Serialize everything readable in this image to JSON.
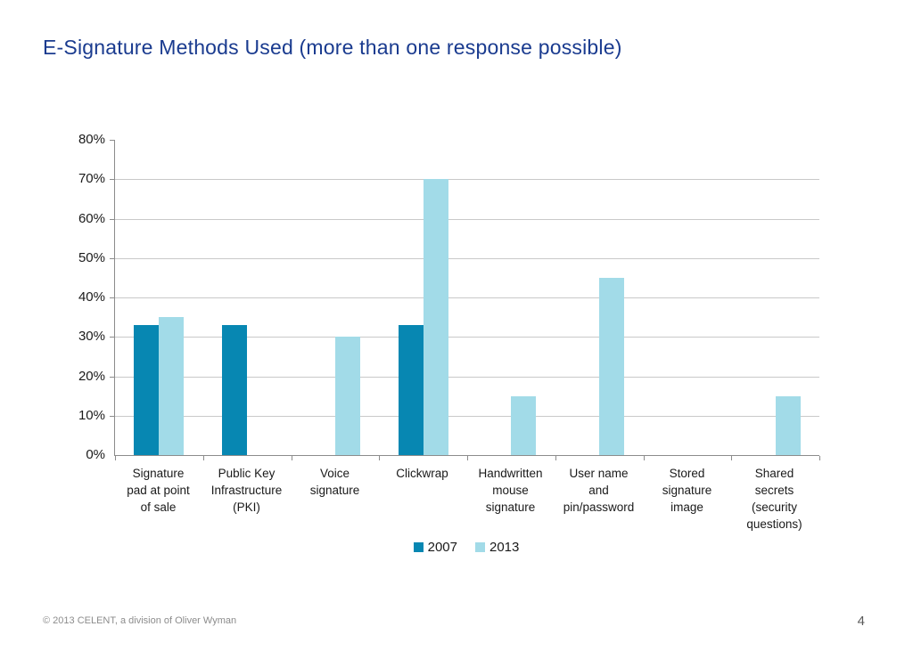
{
  "page": {
    "title": "E-Signature Methods Used (more than one response possible)",
    "footer": "© 2013 CELENT, a division of Oliver Wyman",
    "page_number": "4"
  },
  "colors": {
    "title": "#1a3b8f",
    "series_2007": "#0787b2",
    "series_2013": "#a2dbe8",
    "gridline": "#c9c9c9",
    "axis": "#8c8c8c",
    "footer_text": "#8c8c8c"
  },
  "chart_data": {
    "type": "bar",
    "title": "E-Signature Methods Used (more than one response possible)",
    "xlabel": "",
    "ylabel": "",
    "ylim": [
      0,
      80
    ],
    "y_tick_step": 10,
    "y_ticks": [
      "80%",
      "70%",
      "60%",
      "50%",
      "40%",
      "30%",
      "20%",
      "10%",
      "0%"
    ],
    "grid": true,
    "legend_position": "bottom",
    "categories": [
      "Signature pad at point of sale",
      "Public Key Infrastructure (PKI)",
      "Voice signature",
      "Clickwrap",
      "Handwritten mouse signature",
      "User name and pin/password",
      "Stored signature image",
      "Shared secrets (security questions)"
    ],
    "category_lines": [
      [
        "Signature",
        "pad at point",
        "of sale"
      ],
      [
        "Public Key",
        "Infrastructure",
        "(PKI)"
      ],
      [
        "Voice",
        "signature"
      ],
      [
        "Clickwrap"
      ],
      [
        "Handwritten",
        "mouse",
        "signature"
      ],
      [
        "User name",
        "and",
        "pin/password"
      ],
      [
        "Stored",
        "signature",
        "image"
      ],
      [
        "Shared",
        "secrets",
        "(security",
        "questions)"
      ]
    ],
    "series": [
      {
        "name": "2007",
        "color": "#0787b2",
        "values": [
          33,
          33,
          0,
          33,
          0,
          0,
          0,
          0
        ]
      },
      {
        "name": "2013",
        "color": "#a2dbe8",
        "values": [
          35,
          0,
          30,
          70,
          15,
          45,
          0,
          15
        ]
      }
    ]
  }
}
